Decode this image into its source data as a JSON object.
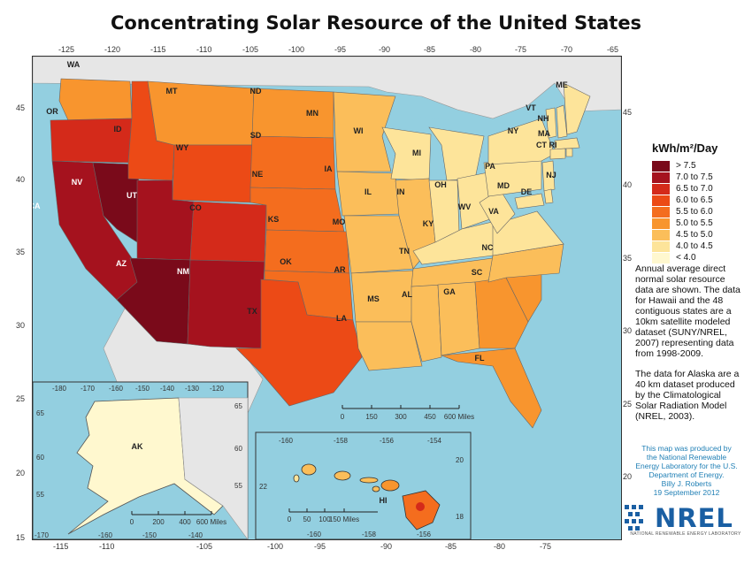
{
  "title": "Concentrating Solar Resource of the United States",
  "longitude_ticks_top": [
    "-125",
    "-120",
    "-115",
    "-110",
    "-105",
    "-100",
    "-95",
    "-90",
    "-85",
    "-80",
    "-75",
    "-70",
    "-65"
  ],
  "longitude_ticks_bottom": [
    "-115",
    "-110",
    "-105",
    "-100",
    "-95",
    "-90",
    "-85",
    "-80",
    "-75"
  ],
  "latitude_ticks_left": [
    "45",
    "40",
    "35",
    "30",
    "25",
    "20",
    "15"
  ],
  "latitude_ticks_right": [
    "45",
    "40",
    "35",
    "30",
    "25",
    "20"
  ],
  "states": [
    {
      "abbr": "WA",
      "level": 3
    },
    {
      "abbr": "OR",
      "level": 6
    },
    {
      "abbr": "CA",
      "level": 7
    },
    {
      "abbr": "NV",
      "level": 8
    },
    {
      "abbr": "ID",
      "level": 5
    },
    {
      "abbr": "MT",
      "level": 3
    },
    {
      "abbr": "WY",
      "level": 5
    },
    {
      "abbr": "UT",
      "level": 7
    },
    {
      "abbr": "AZ",
      "level": 8
    },
    {
      "abbr": "CO",
      "level": 6
    },
    {
      "abbr": "NM",
      "level": 7
    },
    {
      "abbr": "ND",
      "level": 3
    },
    {
      "abbr": "SD",
      "level": 4
    },
    {
      "abbr": "NE",
      "level": 4
    },
    {
      "abbr": "KS",
      "level": 4
    },
    {
      "abbr": "OK",
      "level": 4
    },
    {
      "abbr": "TX",
      "level": 5
    },
    {
      "abbr": "MN",
      "level": 2
    },
    {
      "abbr": "IA",
      "level": 2
    },
    {
      "abbr": "MO",
      "level": 2
    },
    {
      "abbr": "AR",
      "level": 2
    },
    {
      "abbr": "LA",
      "level": 2
    },
    {
      "abbr": "WI",
      "level": 1
    },
    {
      "abbr": "IL",
      "level": 2
    },
    {
      "abbr": "MS",
      "level": 2
    },
    {
      "abbr": "MI",
      "level": 1
    },
    {
      "abbr": "IN",
      "level": 1
    },
    {
      "abbr": "OH",
      "level": 1
    },
    {
      "abbr": "KY",
      "level": 1
    },
    {
      "abbr": "TN",
      "level": 2
    },
    {
      "abbr": "AL",
      "level": 2
    },
    {
      "abbr": "GA",
      "level": 3
    },
    {
      "abbr": "FL",
      "level": 3
    },
    {
      "abbr": "SC",
      "level": 3
    },
    {
      "abbr": "NC",
      "level": 2
    },
    {
      "abbr": "VA",
      "level": 1
    },
    {
      "abbr": "WV",
      "level": 1
    },
    {
      "abbr": "PA",
      "level": 1
    },
    {
      "abbr": "NY",
      "level": 1
    },
    {
      "abbr": "VT",
      "level": 1
    },
    {
      "abbr": "NH",
      "level": 1
    },
    {
      "abbr": "ME",
      "level": 1
    },
    {
      "abbr": "MA",
      "level": 1
    },
    {
      "abbr": "CT",
      "level": 1
    },
    {
      "abbr": "RI",
      "level": 1
    },
    {
      "abbr": "NJ",
      "level": 1
    },
    {
      "abbr": "MD",
      "level": 1
    },
    {
      "abbr": "DE",
      "level": 1
    }
  ],
  "scale_bar_main": {
    "ticks": [
      "0",
      "150",
      "300",
      "450",
      "600 Miles"
    ]
  },
  "alaska_inset": {
    "label": "AK",
    "top_ticks": [
      "-180",
      "-170",
      "-160",
      "-150",
      "-140",
      "-130",
      "-120"
    ],
    "bottom_ticks": [
      "-170",
      "-160",
      "-150",
      "-140"
    ],
    "left_ticks": [
      "65",
      "60",
      "55"
    ],
    "right_ticks": [
      "65",
      "60",
      "55"
    ],
    "scale_ticks": [
      "0",
      "200",
      "400",
      "600 Miles"
    ]
  },
  "hawaii_inset": {
    "label": "HI",
    "top_ticks": [
      "-160",
      "-158",
      "-156",
      "-154"
    ],
    "bottom_ticks": [
      "-160",
      "-158",
      "-156"
    ],
    "left_ticks": [
      "22"
    ],
    "right_ticks": [
      "20",
      "18"
    ],
    "scale_ticks": [
      "0",
      "50",
      "100",
      "150 Miles"
    ]
  },
  "legend": {
    "title": "kWh/m²/Day",
    "items": [
      {
        "label": "> 7.5",
        "color": "#7a0a1a"
      },
      {
        "label": "7.0 to 7.5",
        "color": "#a5121e"
      },
      {
        "label": "6.5 to 7.0",
        "color": "#d42a1a"
      },
      {
        "label": "6.0 to 6.5",
        "color": "#ec4a16"
      },
      {
        "label": "5.5 to 6.0",
        "color": "#f46d1e"
      },
      {
        "label": "5.0 to 5.5",
        "color": "#f8952e"
      },
      {
        "label": "4.5 to 5.0",
        "color": "#fbbe5a"
      },
      {
        "label": "4.0 to 4.5",
        "color": "#fde49a"
      },
      {
        "label": "< 4.0",
        "color": "#fff8cf"
      }
    ]
  },
  "notes": [
    "Annual average direct normal solar resource data are shown.  The data for Hawaii and the 48 contiguous states are a 10km satellite modeled dataset (SUNY/NREL, 2007) representing data from 1998-2009.",
    "The data for Alaska are a 40 km dataset produced by the Climatological Solar Radiation Model (NREL, 2003)."
  ],
  "credit": [
    "This map was produced by",
    "the National Renewable",
    "Energy Laboratory for the U.S.",
    "Department of Energy.",
    "Billy J. Roberts",
    "19 September 2012"
  ],
  "logo": {
    "text": "NREL",
    "subtitle": "NATIONAL RENEWABLE ENERGY LABORATORY",
    "color": "#1a5fa3"
  },
  "colors": {
    "ocean": "#93cfe0",
    "land_other": "#e6e6e6",
    "border": "#666666"
  }
}
